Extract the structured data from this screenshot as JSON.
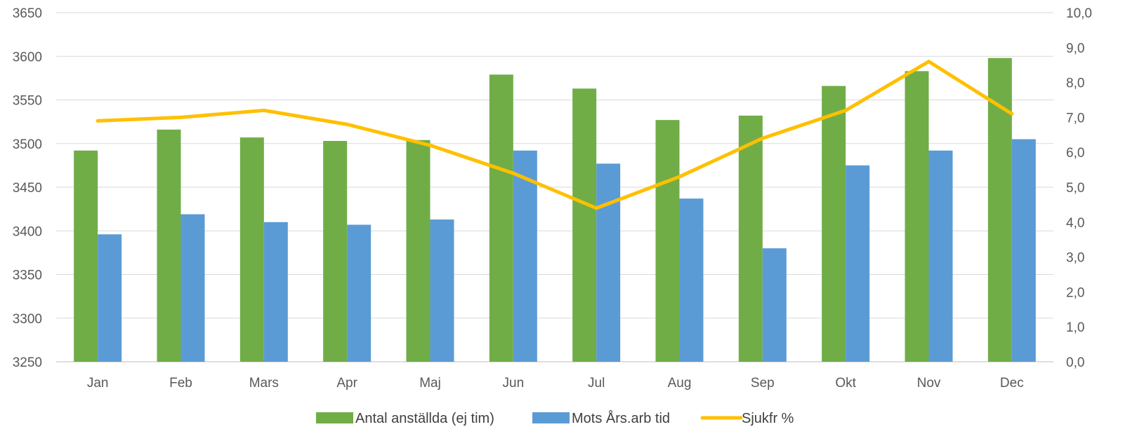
{
  "chart_data": {
    "type": "bar",
    "categories": [
      "Jan",
      "Feb",
      "Mars",
      "Apr",
      "Maj",
      "Jun",
      "Jul",
      "Aug",
      "Sep",
      "Okt",
      "Nov",
      "Dec"
    ],
    "series": [
      {
        "name": "Antal anställda (ej tim)",
        "type": "bar",
        "axis": "left",
        "color": "#70AD47",
        "values": [
          3492,
          3516,
          3507,
          3503,
          3504,
          3579,
          3563,
          3527,
          3532,
          3566,
          3583,
          3598
        ]
      },
      {
        "name": "Mots Års.arb tid",
        "type": "bar",
        "axis": "left",
        "color": "#5B9BD5",
        "values": [
          3396,
          3419,
          3410,
          3407,
          3413,
          3492,
          3477,
          3437,
          3380,
          3475,
          3492,
          3505
        ]
      },
      {
        "name": "Sjukfr %",
        "type": "line",
        "axis": "right",
        "color": "#FFC000",
        "values": [
          6.9,
          7.0,
          7.2,
          6.8,
          6.2,
          5.4,
          4.4,
          5.3,
          6.4,
          7.2,
          8.6,
          7.1
        ]
      }
    ],
    "y_left": {
      "range": [
        3250,
        3650
      ],
      "ticks": [
        "3250",
        "3300",
        "3350",
        "3400",
        "3450",
        "3500",
        "3550",
        "3600",
        "3650"
      ]
    },
    "y_right": {
      "range": [
        0,
        10
      ],
      "ticks": [
        "0,0",
        "1,0",
        "2,0",
        "3,0",
        "4,0",
        "5,0",
        "6,0",
        "7,0",
        "8,0",
        "9,0",
        "10,0"
      ]
    },
    "grid": true,
    "legend": "bottom"
  }
}
